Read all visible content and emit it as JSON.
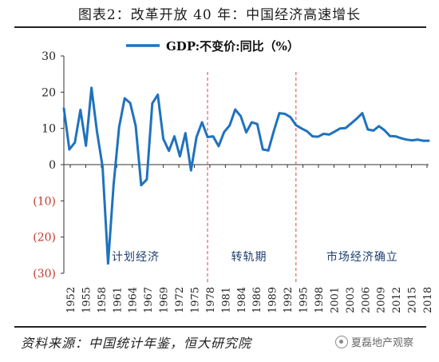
{
  "title": "图表2：改革开放 40 年：中国经济高速增长",
  "source": "资料来源：中国统计年鉴，恒大研究院",
  "watermark": "夏磊地产观察",
  "watermark_icon": "wechat-icon",
  "colors": {
    "line": "#1f72bd",
    "divider": "#d94545",
    "negative_tick": "#c0392b",
    "axis": "#333333"
  },
  "chart_data": {
    "type": "line",
    "title": "图表2：改革开放 40 年：中国经济高速增长",
    "xlabel": "",
    "ylabel": "",
    "ylim": [
      -30,
      30
    ],
    "yticks": [
      30,
      20,
      10,
      0,
      -10,
      -20,
      -30
    ],
    "ytick_labels": [
      "30",
      "20",
      "10",
      "0",
      "(10)",
      "(20)",
      "(30)"
    ],
    "xlim": [
      1952,
      2018
    ],
    "xtick_labels": [
      "1952",
      "1955",
      "1958",
      "1961",
      "1964",
      "1967",
      "1969",
      "1972",
      "1975",
      "1978",
      "1981",
      "1984",
      "1986",
      "1989",
      "1992",
      "1995",
      "1998",
      "2001",
      "2003",
      "2006",
      "2009",
      "2012",
      "2015",
      "2018"
    ],
    "legend": {
      "label": "GDP:不变价:同比（%）",
      "position": "top"
    },
    "grid": false,
    "dividers": [
      1978,
      1994
    ],
    "period_labels": [
      {
        "label": "计划经济",
        "x": 1965
      },
      {
        "label": "转轨期",
        "x": 1985.5
      },
      {
        "label": "市场经济确立",
        "x": 2006
      }
    ],
    "series": [
      {
        "name": "GDP:不变价:同比（%）",
        "x": [
          1952,
          1953,
          1954,
          1955,
          1956,
          1957,
          1958,
          1959,
          1960,
          1961,
          1962,
          1963,
          1964,
          1965,
          1966,
          1967,
          1968,
          1969,
          1970,
          1971,
          1972,
          1973,
          1974,
          1975,
          1976,
          1977,
          1978,
          1979,
          1980,
          1981,
          1982,
          1983,
          1984,
          1985,
          1986,
          1987,
          1988,
          1989,
          1990,
          1991,
          1992,
          1993,
          1994,
          1995,
          1996,
          1997,
          1998,
          1999,
          2000,
          2001,
          2002,
          2003,
          2004,
          2005,
          2006,
          2007,
          2008,
          2009,
          2010,
          2011,
          2012,
          2013,
          2014,
          2015,
          2016,
          2017,
          2018
        ],
        "values": [
          15.5,
          4.2,
          6.1,
          15.1,
          5.2,
          21.2,
          9.1,
          -0.6,
          -27.3,
          -5.6,
          10.3,
          18.3,
          17.0,
          10.7,
          -5.7,
          -4.1,
          16.9,
          19.3,
          7.1,
          3.8,
          7.8,
          2.3,
          8.7,
          -1.6,
          7.6,
          11.7,
          7.6,
          7.8,
          5.1,
          9.0,
          10.8,
          15.2,
          13.4,
          8.9,
          11.7,
          11.2,
          4.2,
          3.9,
          9.3,
          14.2,
          14.0,
          13.1,
          10.9,
          10.0,
          9.2,
          7.8,
          7.7,
          8.5,
          8.3,
          9.1,
          10.0,
          10.1,
          11.4,
          12.7,
          14.2,
          9.7,
          9.4,
          10.6,
          9.5,
          7.9,
          7.8,
          7.3,
          6.9,
          6.7,
          6.9,
          6.6,
          6.6
        ]
      }
    ]
  }
}
